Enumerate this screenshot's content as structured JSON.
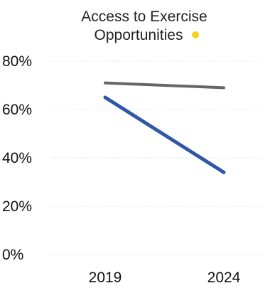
{
  "chart_data": {
    "type": "line",
    "title_line1": "Access to Exercise",
    "title_line2": "Opportunities",
    "status_dot_color": "#f2d21b",
    "categories": [
      "2019",
      "2024"
    ],
    "series": [
      {
        "values": [
          71,
          69
        ],
        "color": "#666666"
      },
      {
        "values": [
          65,
          34
        ],
        "color": "#2f57a5"
      }
    ],
    "y_ticks": [
      80,
      60,
      40,
      20,
      0
    ],
    "y_tick_labels": [
      "80%",
      "60%",
      "40%",
      "20%",
      "0%"
    ],
    "ylim": [
      0,
      80
    ],
    "grid": true,
    "xlabel": "",
    "ylabel": ""
  }
}
